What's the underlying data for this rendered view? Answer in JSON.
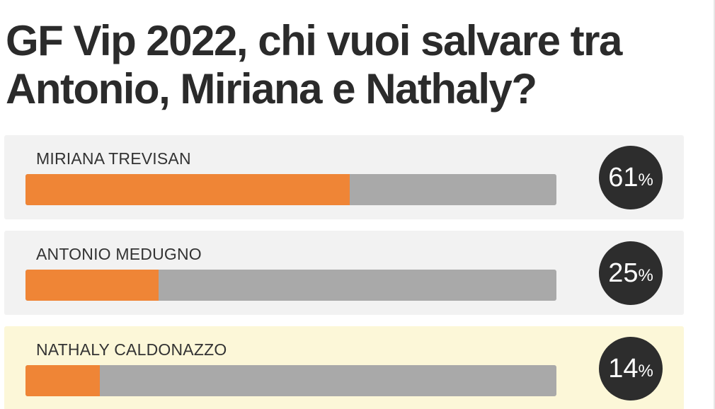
{
  "poll": {
    "title": "GF Vip 2022, chi vuoi salvare tra Antonio, Miriana e Nathaly?",
    "percent_symbol": "%",
    "options": [
      {
        "name": "MIRIANA TREVISAN",
        "percent": 61
      },
      {
        "name": "ANTONIO MEDUGNO",
        "percent": 25
      },
      {
        "name": "NATHALY CALDONAZZO",
        "percent": 14
      }
    ]
  },
  "colors": {
    "bar_fill": "#ef8536",
    "bar_track": "#a9a9a9",
    "option_bg": "#f2f2f2",
    "selected_bg": "#fcf7d8",
    "badge_bg": "#2d2d2d",
    "title_text": "#2b2b2b"
  }
}
